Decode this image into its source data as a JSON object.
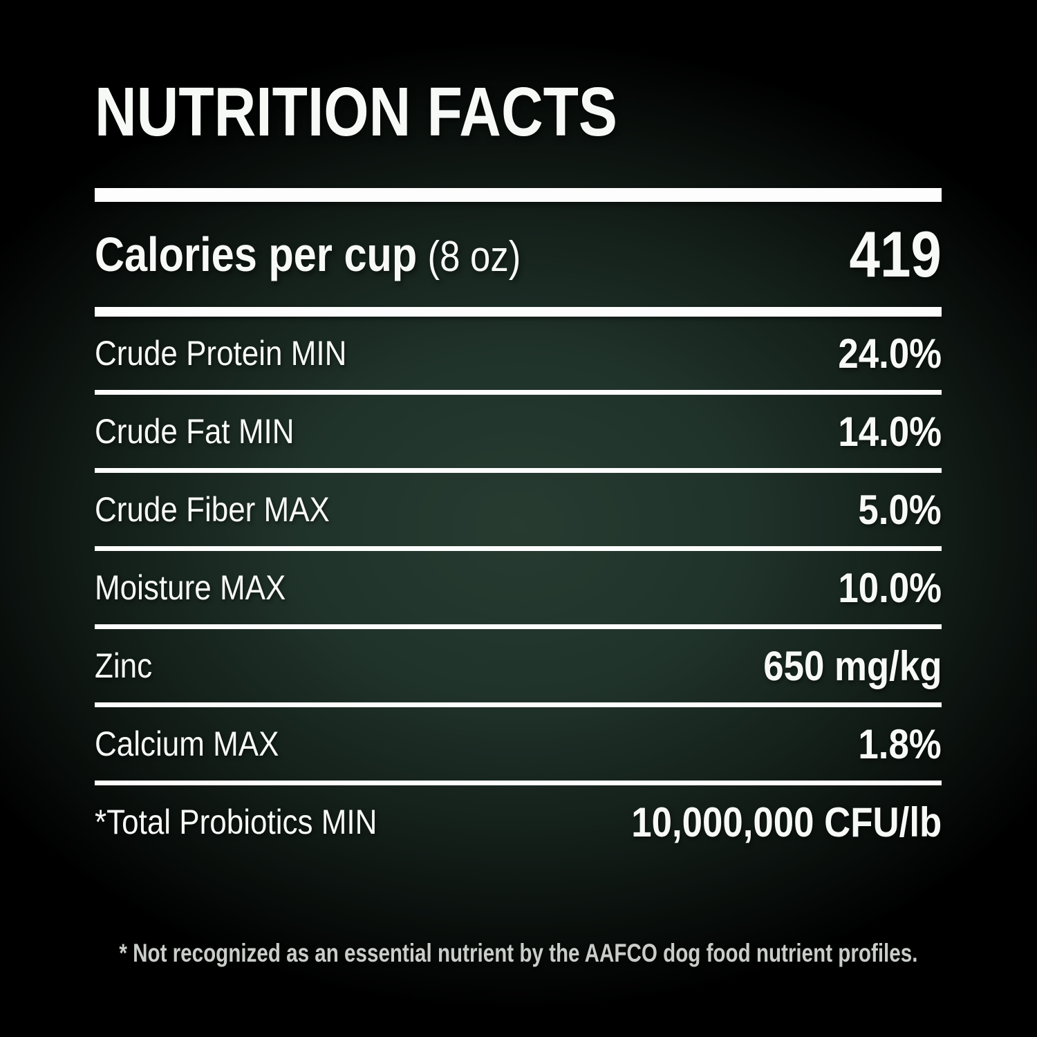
{
  "title": "NUTRITION FACTS",
  "calories": {
    "label": "Calories per cup",
    "serving": "(8 oz)",
    "value": "419"
  },
  "rows": [
    {
      "label": "Crude Protein MIN",
      "value": "24.0%"
    },
    {
      "label": "Crude Fat MIN",
      "value": "14.0%"
    },
    {
      "label": "Crude Fiber MAX",
      "value": "5.0%"
    },
    {
      "label": "Moisture MAX",
      "value": "10.0%"
    },
    {
      "label": "Zinc",
      "value": "650 mg/kg"
    },
    {
      "label": "Calcium MAX",
      "value": "1.8%"
    },
    {
      "label": "*Total Probiotics MIN",
      "value": "10,000,000 CFU/lb"
    }
  ],
  "footnote": "* Not recognized as an essential nutrient by the AAFCO dog food nutrient profiles.",
  "colors": {
    "background_center": "#273b31",
    "background_edge": "#000000",
    "text": "#f7f9f7",
    "divider": "#fdfdfd",
    "footnote_text": "#c9cdc9"
  }
}
